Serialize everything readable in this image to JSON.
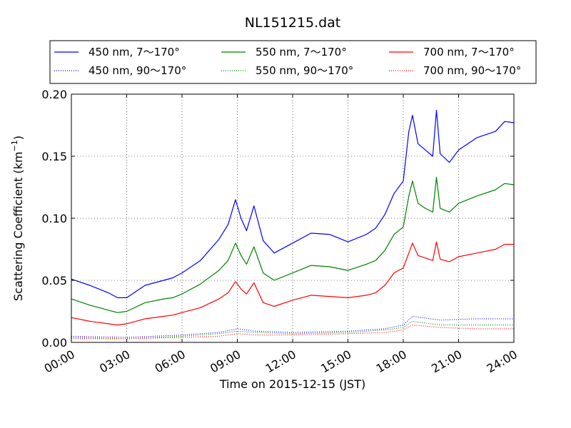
{
  "chart_data": {
    "type": "line",
    "title": "NL151215.dat",
    "xlabel": "Time on 2015-12-15 (JST)",
    "ylabel": "Scattering Coefficient (km",
    "ylabel_sup": "−1",
    "ylabel_close": ")",
    "xlim": [
      0,
      24
    ],
    "ylim": [
      0,
      0.2
    ],
    "grid": true,
    "legend_position": "top, above plot",
    "x_ticks": [
      0,
      3,
      6,
      9,
      12,
      15,
      18,
      21,
      24
    ],
    "x_tick_labels": [
      "00:00",
      "03:00",
      "06:00",
      "09:00",
      "12:00",
      "15:00",
      "18:00",
      "21:00",
      "24:00"
    ],
    "y_ticks": [
      0,
      0.05,
      0.1,
      0.15,
      0.2
    ],
    "y_tick_labels": [
      "0.00",
      "0.05",
      "0.10",
      "0.15",
      "0.20"
    ],
    "series": [
      {
        "name": "450 nm, 7～170°",
        "color": "#0000ff",
        "style": "solid",
        "x": [
          0,
          1,
          2,
          2.5,
          3,
          4,
          5,
          5.5,
          6,
          7,
          8,
          8.5,
          8.9,
          9.2,
          9.5,
          9.9,
          10.4,
          11,
          12,
          13,
          14,
          15,
          16,
          16.5,
          17,
          17.5,
          18,
          18.3,
          18.5,
          18.8,
          19.2,
          19.6,
          19.8,
          20,
          20.5,
          21,
          22,
          23,
          23.5,
          24
        ],
        "values": [
          0.051,
          0.046,
          0.04,
          0.036,
          0.036,
          0.046,
          0.05,
          0.052,
          0.056,
          0.066,
          0.083,
          0.095,
          0.115,
          0.1,
          0.09,
          0.11,
          0.082,
          0.072,
          0.08,
          0.088,
          0.087,
          0.081,
          0.087,
          0.092,
          0.103,
          0.12,
          0.13,
          0.17,
          0.183,
          0.16,
          0.155,
          0.15,
          0.187,
          0.152,
          0.145,
          0.155,
          0.165,
          0.17,
          0.178,
          0.177
        ]
      },
      {
        "name": "550 nm, 7～170°",
        "color": "#008000",
        "style": "solid",
        "x": [
          0,
          1,
          2,
          2.5,
          3,
          4,
          5,
          5.5,
          6,
          7,
          8,
          8.5,
          8.9,
          9.2,
          9.5,
          9.9,
          10.4,
          11,
          12,
          13,
          14,
          15,
          16,
          16.5,
          17,
          17.5,
          18,
          18.3,
          18.5,
          18.8,
          19.2,
          19.6,
          19.8,
          20,
          20.5,
          21,
          22,
          23,
          23.5,
          24
        ],
        "values": [
          0.035,
          0.03,
          0.026,
          0.024,
          0.025,
          0.032,
          0.035,
          0.036,
          0.039,
          0.047,
          0.058,
          0.066,
          0.08,
          0.07,
          0.063,
          0.077,
          0.056,
          0.05,
          0.056,
          0.062,
          0.061,
          0.058,
          0.063,
          0.066,
          0.074,
          0.087,
          0.093,
          0.118,
          0.13,
          0.112,
          0.108,
          0.105,
          0.133,
          0.108,
          0.105,
          0.112,
          0.118,
          0.123,
          0.128,
          0.127
        ]
      },
      {
        "name": "700 nm, 7～170°",
        "color": "#ff0000",
        "style": "solid",
        "x": [
          0,
          1,
          2,
          2.5,
          3,
          4,
          5,
          5.5,
          6,
          7,
          8,
          8.5,
          8.9,
          9.2,
          9.5,
          9.9,
          10.4,
          11,
          12,
          13,
          14,
          15,
          16,
          16.5,
          17,
          17.5,
          18,
          18.3,
          18.5,
          18.8,
          19.2,
          19.6,
          19.8,
          20,
          20.5,
          21,
          22,
          23,
          23.5,
          24
        ],
        "values": [
          0.02,
          0.017,
          0.015,
          0.014,
          0.015,
          0.019,
          0.021,
          0.022,
          0.024,
          0.028,
          0.035,
          0.04,
          0.049,
          0.043,
          0.039,
          0.048,
          0.032,
          0.029,
          0.034,
          0.038,
          0.037,
          0.036,
          0.038,
          0.04,
          0.046,
          0.056,
          0.06,
          0.072,
          0.08,
          0.07,
          0.068,
          0.066,
          0.081,
          0.067,
          0.065,
          0.069,
          0.072,
          0.075,
          0.079,
          0.079
        ]
      },
      {
        "name": "450 nm, 90～170°",
        "color": "#0000ff",
        "style": "dotted",
        "x": [
          0,
          3,
          6,
          8,
          9,
          10,
          12,
          15,
          17,
          18,
          18.5,
          20,
          22,
          24
        ],
        "values": [
          0.005,
          0.004,
          0.006,
          0.008,
          0.011,
          0.009,
          0.008,
          0.009,
          0.011,
          0.014,
          0.021,
          0.018,
          0.019,
          0.019
        ]
      },
      {
        "name": "550 nm, 90～170°",
        "color": "#008000",
        "style": "dotted",
        "x": [
          0,
          3,
          6,
          8,
          9,
          10,
          12,
          15,
          17,
          18,
          18.5,
          20,
          22,
          24
        ],
        "values": [
          0.004,
          0.003,
          0.005,
          0.007,
          0.009,
          0.008,
          0.007,
          0.008,
          0.01,
          0.012,
          0.017,
          0.014,
          0.014,
          0.014
        ]
      },
      {
        "name": "700 nm, 90～170°",
        "color": "#ff0000",
        "style": "dotted",
        "x": [
          0,
          3,
          6,
          8,
          9,
          10,
          12,
          15,
          17,
          18,
          18.5,
          20,
          22,
          24
        ],
        "values": [
          0.003,
          0.003,
          0.004,
          0.005,
          0.007,
          0.006,
          0.006,
          0.007,
          0.008,
          0.01,
          0.014,
          0.012,
          0.011,
          0.011
        ]
      }
    ]
  }
}
